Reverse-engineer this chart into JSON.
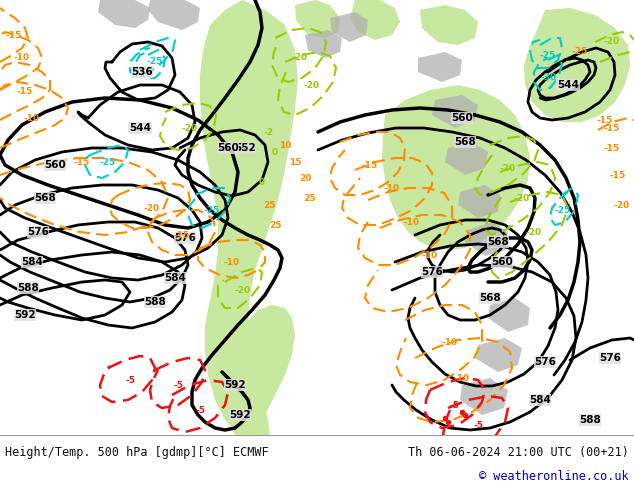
{
  "title_left": "Height/Temp. 500 hPa [gdmp][°C] ECMWF",
  "title_right": "Th 06-06-2024 21:00 UTC (00+21)",
  "copyright": "© weatheronline.co.uk",
  "bg_color": "#e0e0e0",
  "land_green_color": "#c8e8a0",
  "land_gray_color": "#b0b0b0",
  "footer_bg": "#ffffff",
  "footer_text_color": "#111111",
  "copyright_color": "#0000cc",
  "black": "#000000",
  "orange": "#ff8c00",
  "red": "#ee1111",
  "cyan": "#00cccc",
  "green_line": "#99cc00"
}
